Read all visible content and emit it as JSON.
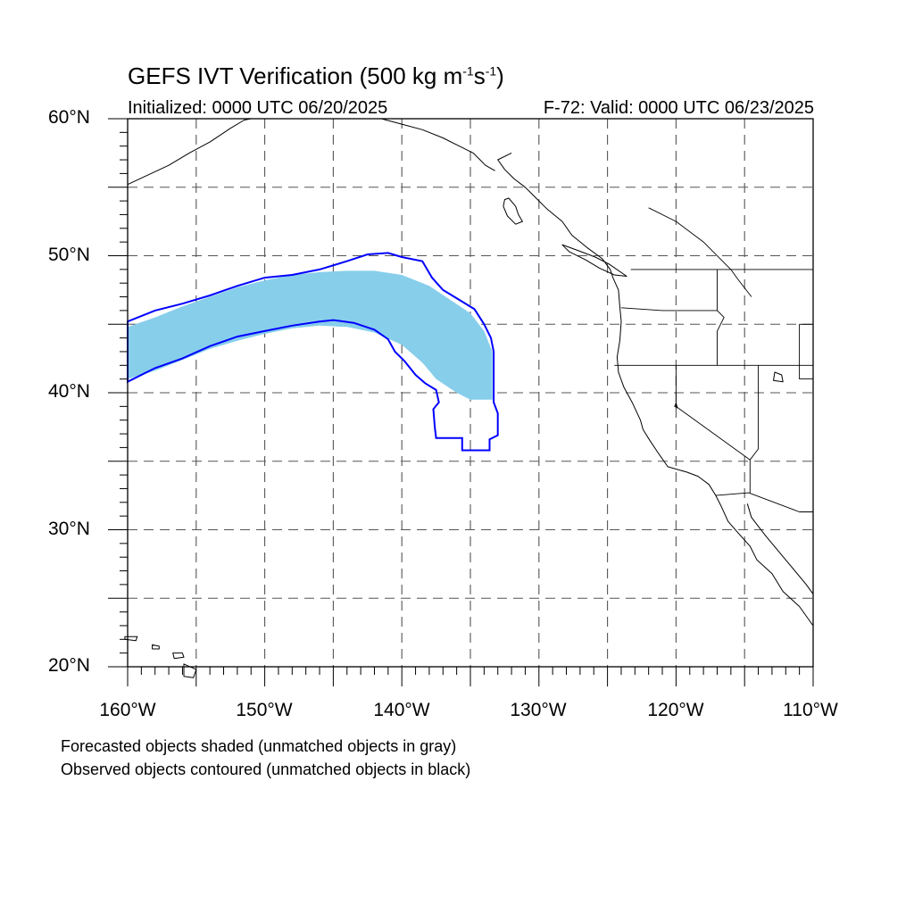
{
  "title": {
    "main": "GEFS IVT Verification (500 kg m",
    "exp1": "-1",
    "mid": "s",
    "exp2": "-1",
    "end": ")"
  },
  "initialized": "Initialized: 0000 UTC 06/20/2025",
  "valid": "F-72: Valid: 0000 UTC 06/23/2025",
  "lat_labels": [
    "60°N",
    "50°N",
    "40°N",
    "30°N",
    "20°N"
  ],
  "lon_labels": [
    "160°W",
    "150°W",
    "140°W",
    "130°W",
    "120°W",
    "110°W"
  ],
  "legend": {
    "forecast_note": "Forecasted objects shaded (unmatched objects in gray)",
    "observed_note": "Observed objects contoured (unmatched objects in black)"
  },
  "colors": {
    "forecast_fill": "#87CEEB",
    "observed_contour": "#0000FF",
    "coastline": "#000000",
    "grid": "#555555"
  },
  "map": {
    "lon_range": [
      -160,
      -110
    ],
    "lat_range": [
      20,
      60
    ],
    "grid_interval_deg": 5,
    "grid_style": "dashed"
  },
  "forecast_object": {
    "matched": true,
    "upper_edge": [
      [
        -160,
        44.8
      ],
      [
        -158,
        45.5
      ],
      [
        -156,
        46.3
      ],
      [
        -154,
        47.0
      ],
      [
        -152,
        47.7
      ],
      [
        -150,
        48.2
      ],
      [
        -148,
        48.6
      ],
      [
        -146,
        48.8
      ],
      [
        -144,
        48.9
      ],
      [
        -142,
        48.9
      ],
      [
        -140,
        48.6
      ],
      [
        -138,
        47.8
      ],
      [
        -136.5,
        46.8
      ],
      [
        -135,
        45.8
      ],
      [
        -134,
        44.5
      ],
      [
        -133.4,
        43.0
      ],
      [
        -133.4,
        39.5
      ]
    ],
    "lower_edge": [
      [
        -160,
        41.0
      ],
      [
        -158,
        41.6
      ],
      [
        -156,
        42.4
      ],
      [
        -154,
        43.2
      ],
      [
        -152,
        43.8
      ],
      [
        -150,
        44.3
      ],
      [
        -148,
        44.7
      ],
      [
        -146,
        44.9
      ],
      [
        -144,
        44.8
      ],
      [
        -142,
        44.4
      ],
      [
        -140,
        43.5
      ],
      [
        -138.5,
        42.2
      ],
      [
        -137.5,
        41.0
      ],
      [
        -136,
        40.0
      ],
      [
        -135,
        39.5
      ]
    ]
  },
  "observed_object": {
    "matched": true,
    "outline": [
      [
        -160,
        45.2
      ],
      [
        -158,
        46.0
      ],
      [
        -156,
        46.5
      ],
      [
        -154,
        47.1
      ],
      [
        -152,
        47.8
      ],
      [
        -150,
        48.4
      ],
      [
        -148,
        48.6
      ],
      [
        -146,
        49.0
      ],
      [
        -144,
        49.6
      ],
      [
        -142.5,
        50.1
      ],
      [
        -141,
        50.2
      ],
      [
        -140,
        49.9
      ],
      [
        -138.5,
        49.6
      ],
      [
        -137.8,
        48.4
      ],
      [
        -137,
        47.5
      ],
      [
        -136,
        46.9
      ],
      [
        -134.7,
        46.1
      ],
      [
        -134,
        45.0
      ],
      [
        -133.5,
        44.0
      ],
      [
        -133.3,
        43.0
      ],
      [
        -133.3,
        41.0
      ],
      [
        -133.3,
        39.3
      ],
      [
        -133,
        38.5
      ],
      [
        -133,
        36.9
      ],
      [
        -133.6,
        36.6
      ],
      [
        -133.6,
        35.8
      ],
      [
        -135,
        35.8
      ],
      [
        -135.6,
        35.8
      ],
      [
        -135.6,
        36.7
      ],
      [
        -137.5,
        36.7
      ],
      [
        -137.6,
        37.5
      ],
      [
        -137.7,
        38.8
      ],
      [
        -137.3,
        39.3
      ],
      [
        -137.5,
        40.2
      ],
      [
        -138.3,
        40.7
      ],
      [
        -139,
        41.3
      ],
      [
        -139.8,
        42.3
      ],
      [
        -140.5,
        43.0
      ],
      [
        -141,
        43.9
      ],
      [
        -142,
        44.6
      ],
      [
        -143.5,
        45.1
      ],
      [
        -145,
        45.3
      ],
      [
        -146,
        45.2
      ],
      [
        -148,
        44.9
      ],
      [
        -150,
        44.5
      ],
      [
        -152,
        44.1
      ],
      [
        -154,
        43.4
      ],
      [
        -156,
        42.5
      ],
      [
        -158,
        41.8
      ],
      [
        -160,
        40.8
      ]
    ]
  },
  "geography": {
    "coastline": [
      [
        -132,
        57.5
      ],
      [
        -133,
        57.0
      ],
      [
        -132.5,
        56.3
      ],
      [
        -131.8,
        55.6
      ],
      [
        -131,
        55.0
      ],
      [
        -130.3,
        54.3
      ],
      [
        -129.4,
        53.4
      ],
      [
        -128.3,
        52.5
      ],
      [
        -127.6,
        51.5
      ],
      [
        -126.5,
        50.6
      ],
      [
        -125.4,
        49.8
      ],
      [
        -124.8,
        49.0
      ],
      [
        -124.6,
        48.4
      ],
      [
        -124.2,
        47.5
      ],
      [
        -124.1,
        46.3
      ],
      [
        -124.0,
        45.2
      ],
      [
        -124.1,
        43.8
      ],
      [
        -124.3,
        42.6
      ],
      [
        -124.2,
        41.5
      ],
      [
        -123.8,
        40.4
      ],
      [
        -123.2,
        39.3
      ],
      [
        -122.6,
        38.0
      ],
      [
        -122.4,
        37.3
      ],
      [
        -121.9,
        36.5
      ],
      [
        -121.3,
        35.6
      ],
      [
        -120.6,
        34.6
      ],
      [
        -119.2,
        34.2
      ],
      [
        -118.4,
        33.9
      ],
      [
        -117.6,
        33.3
      ],
      [
        -117.1,
        32.5
      ],
      [
        -116.7,
        31.7
      ],
      [
        -116.2,
        30.6
      ],
      [
        -115.5,
        29.8
      ],
      [
        -114.6,
        28.8
      ],
      [
        -114.1,
        27.8
      ],
      [
        -113.0,
        26.8
      ],
      [
        -112.2,
        25.5
      ],
      [
        -111.0,
        24.4
      ],
      [
        -110.0,
        23.0
      ]
    ],
    "gulf_coast": [
      [
        -114.8,
        31.9
      ],
      [
        -114.5,
        30.9
      ],
      [
        -113.5,
        29.6
      ],
      [
        -112.5,
        28.4
      ],
      [
        -111.5,
        27.2
      ],
      [
        -110.5,
        26.0
      ],
      [
        -110.0,
        25.3
      ]
    ],
    "alaska_coast": [
      [
        -160,
        55.2
      ],
      [
        -158.5,
        55.9
      ],
      [
        -157,
        56.6
      ],
      [
        -155.5,
        57.5
      ],
      [
        -154,
        58.3
      ],
      [
        -152.5,
        59.3
      ],
      [
        -151.5,
        59.9
      ],
      [
        -151,
        60.0
      ]
    ],
    "alaska_se_coast": [
      [
        -141.5,
        60.0
      ],
      [
        -140,
        59.6
      ],
      [
        -138.5,
        59.2
      ],
      [
        -137,
        58.6
      ],
      [
        -136,
        58.1
      ],
      [
        -134.8,
        57.5
      ],
      [
        -134.3,
        57.0
      ],
      [
        -133.9,
        56.6
      ],
      [
        -133.2,
        56.2
      ]
    ],
    "haida_gwaii": [
      [
        -132.2,
        54.2
      ],
      [
        -131.7,
        53.6
      ],
      [
        -131.5,
        53.0
      ],
      [
        -131.2,
        52.5
      ],
      [
        -131.7,
        52.3
      ],
      [
        -132.3,
        52.9
      ],
      [
        -132.6,
        53.6
      ],
      [
        -132.5,
        54.1
      ],
      [
        -132.2,
        54.2
      ]
    ],
    "vancouver_island": [
      [
        -128.3,
        50.8
      ],
      [
        -127.2,
        50.4
      ],
      [
        -125.9,
        49.9
      ],
      [
        -124.9,
        49.4
      ],
      [
        -123.6,
        48.5
      ],
      [
        -124.5,
        48.6
      ],
      [
        -125.6,
        49.1
      ],
      [
        -126.6,
        49.7
      ],
      [
        -127.8,
        50.3
      ],
      [
        -128.3,
        50.8
      ]
    ],
    "hawaii": [
      [
        [
          -160.2,
          22.2
        ],
        [
          -159.3,
          22.2
        ],
        [
          -159.4,
          21.9
        ],
        [
          -160.2,
          22.0
        ]
      ],
      [
        [
          -158.2,
          21.6
        ],
        [
          -157.7,
          21.5
        ],
        [
          -157.7,
          21.3
        ],
        [
          -158.2,
          21.3
        ]
      ],
      [
        [
          -156.7,
          21.0
        ],
        [
          -156.0,
          21.0
        ],
        [
          -155.9,
          20.7
        ],
        [
          -156.6,
          20.6
        ]
      ],
      [
        [
          -155.9,
          20.2
        ],
        [
          -155.0,
          19.8
        ],
        [
          -155.2,
          19.2
        ],
        [
          -155.9,
          19.3
        ]
      ]
    ],
    "borders": [
      [
        [
          -123.3,
          49.0
        ],
        [
          -110,
          49.0
        ]
      ],
      [
        [
          -124.5,
          42.0
        ],
        [
          -110,
          42.0
        ]
      ],
      [
        [
          -124.0,
          46.2
        ],
        [
          -121,
          46.0
        ],
        [
          -119,
          46.0
        ],
        [
          -117,
          46.0
        ]
      ],
      [
        [
          -117,
          49.0
        ],
        [
          -117,
          46.0
        ],
        [
          -116.5,
          45.5
        ],
        [
          -117,
          44.5
        ],
        [
          -117,
          42.0
        ]
      ],
      [
        [
          -120,
          42.0
        ],
        [
          -120,
          39.0
        ],
        [
          -114.6,
          35.1
        ],
        [
          -114.6,
          32.7
        ]
      ],
      [
        [
          -114.0,
          42.0
        ],
        [
          -114.0,
          35.9
        ],
        [
          -114.6,
          35.1
        ]
      ],
      [
        [
          -111.0,
          45.0
        ],
        [
          -111.0,
          41.0
        ],
        [
          -110,
          41.0
        ]
      ],
      [
        [
          -117.1,
          32.5
        ],
        [
          -114.7,
          32.7
        ],
        [
          -111.0,
          31.3
        ],
        [
          -110,
          31.3
        ]
      ],
      [
        [
          -110,
          45.0
        ],
        [
          -111.0,
          45.0
        ]
      ],
      [
        [
          -116,
          49.0
        ],
        [
          -115.5,
          48.3
        ],
        [
          -114.5,
          47.0
        ]
      ],
      [
        [
          -122,
          53.5
        ],
        [
          -120,
          52.5
        ],
        [
          -118,
          51.0
        ],
        [
          -116,
          49.0
        ]
      ]
    ],
    "lakes": [
      [
        [
          -112.8,
          41.5
        ],
        [
          -112.3,
          41.3
        ],
        [
          -112.2,
          40.8
        ],
        [
          -112.9,
          40.9
        ],
        [
          -112.8,
          41.5
        ]
      ],
      [
        [
          -120,
          39.25
        ],
        [
          -119.9,
          38.9
        ],
        [
          -120.1,
          39.0
        ],
        [
          -120,
          39.25
        ]
      ]
    ]
  }
}
